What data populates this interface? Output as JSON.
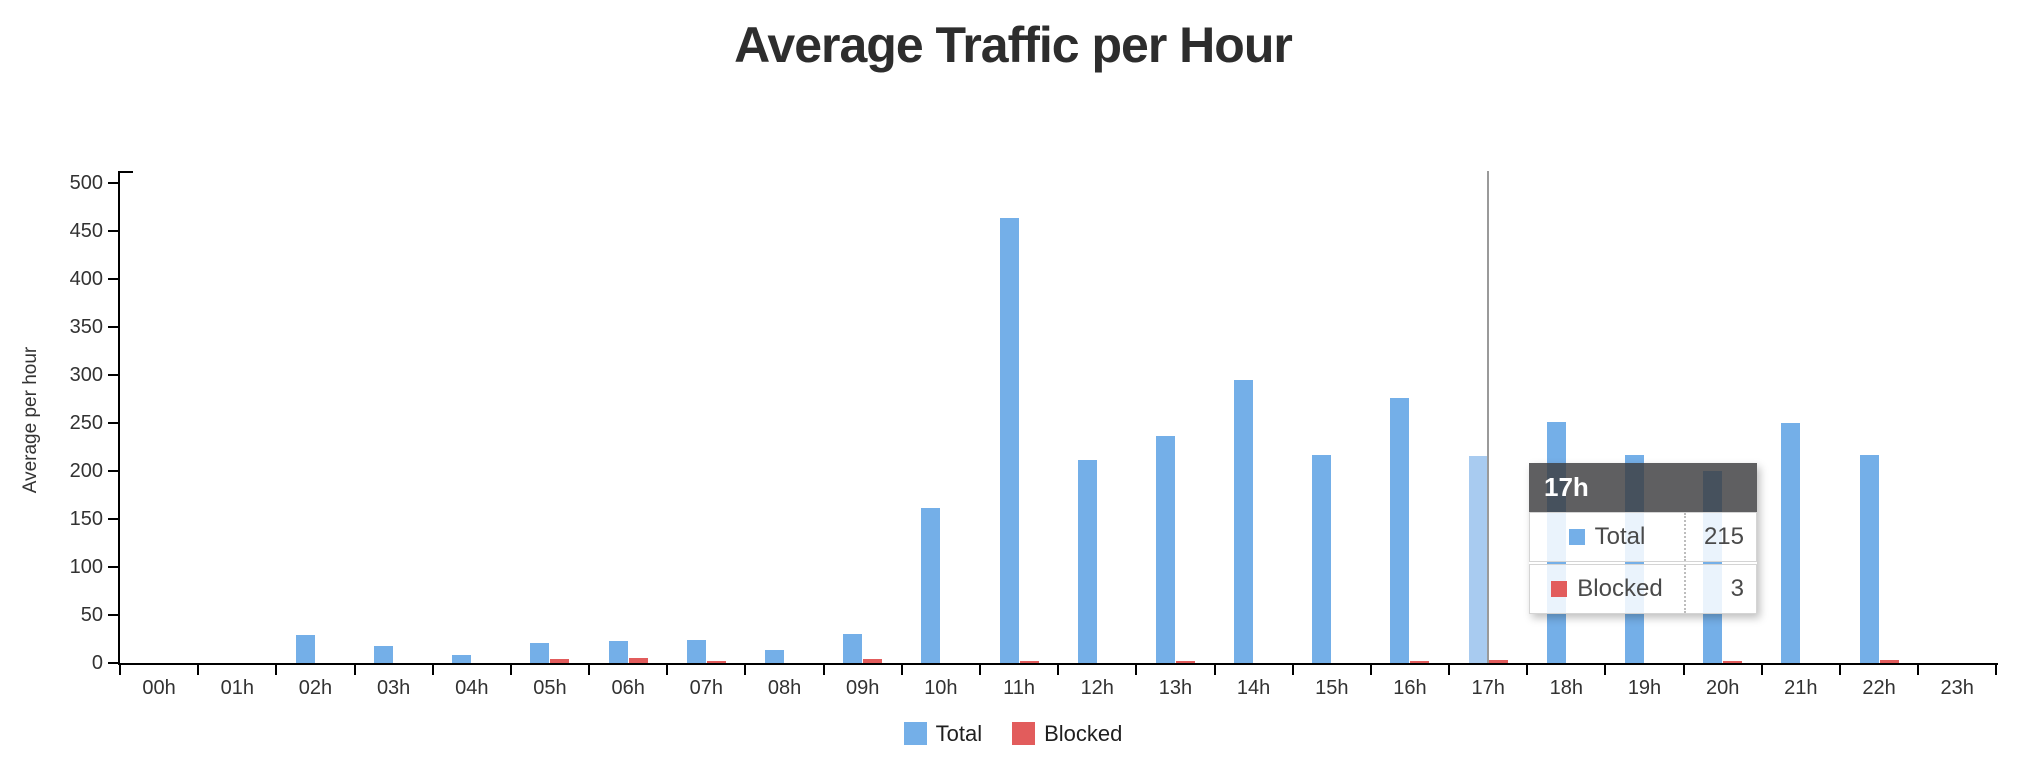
{
  "title": "Average Traffic per Hour",
  "chart_data": {
    "type": "bar",
    "categories": [
      "00h",
      "01h",
      "02h",
      "03h",
      "04h",
      "05h",
      "06h",
      "07h",
      "08h",
      "09h",
      "10h",
      "11h",
      "12h",
      "13h",
      "14h",
      "15h",
      "16h",
      "17h",
      "18h",
      "19h",
      "20h",
      "21h",
      "22h",
      "23h"
    ],
    "series": [
      {
        "name": "Total",
        "color": "#74afe8",
        "values": [
          0,
          0,
          29,
          18,
          8,
          21,
          23,
          24,
          14,
          30,
          161,
          463,
          211,
          236,
          294,
          216,
          276,
          215,
          251,
          216,
          200,
          250,
          216,
          0
        ]
      },
      {
        "name": "Blocked",
        "color": "#e25c5c",
        "values": [
          0,
          0,
          0,
          0,
          0,
          4,
          5,
          2,
          0,
          4,
          0,
          2,
          0,
          2,
          0,
          0,
          2,
          3,
          0,
          0,
          2,
          0,
          3,
          0
        ]
      }
    ],
    "title": "Average Traffic per Hour",
    "xlabel": "",
    "ylabel": "Average per hour",
    "ylim": [
      0,
      500
    ],
    "ytick_step": 50,
    "yticks": [
      0,
      50,
      100,
      150,
      200,
      250,
      300,
      350,
      400,
      450,
      500
    ],
    "grid": false,
    "legend_position": "bottom"
  },
  "hover": {
    "category": "17h",
    "index": 17,
    "highlight_bar_color": "#a8cbf0",
    "crosshair_color": "#9a9a9a"
  },
  "tooltip": {
    "title": "17h",
    "rows": [
      {
        "series": "Total",
        "value": 215,
        "color": "#74afe8"
      },
      {
        "series": "Blocked",
        "value": 3,
        "color": "#e25c5c"
      }
    ]
  },
  "colors": {
    "axis": "#000000",
    "tick_label": "#323232",
    "title_text": "#2d2d2d"
  }
}
